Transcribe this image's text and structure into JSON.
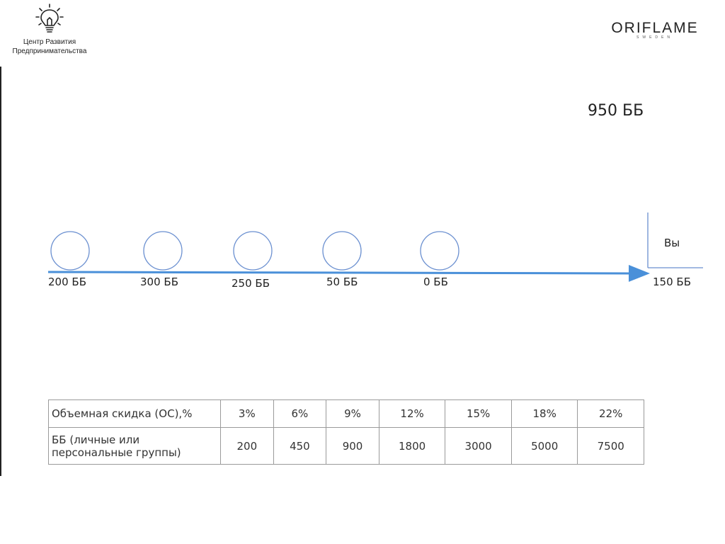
{
  "branding": {
    "center_name_line1": "Центр Развития",
    "center_name_line2": "Предпринимательства",
    "brand_name": "ORIFLAME",
    "brand_sub": "SWEDEN"
  },
  "diagram": {
    "total": "950 ББ",
    "you_label": "Вы",
    "you_value": "150 ББ",
    "nodes": [
      {
        "label": "200 ББ"
      },
      {
        "label": "300 ББ"
      },
      {
        "label": "250 ББ"
      },
      {
        "label": "50 ББ"
      },
      {
        "label": "0 ББ"
      }
    ],
    "colors": {
      "arrow": "#4a90d9",
      "circle": "#6a8fd0",
      "text": "#222222"
    }
  },
  "table": {
    "row1_header": "Объемная скидка (ОС),%",
    "row2_header_line1": "ББ (личные или",
    "row2_header_line2": "персональные группы)",
    "discounts": [
      "3%",
      "6%",
      "9%",
      "12%",
      "15%",
      "18%",
      "22%"
    ],
    "volumes": [
      "200",
      "450",
      "900",
      "1800",
      "3000",
      "5000",
      "7500"
    ]
  }
}
